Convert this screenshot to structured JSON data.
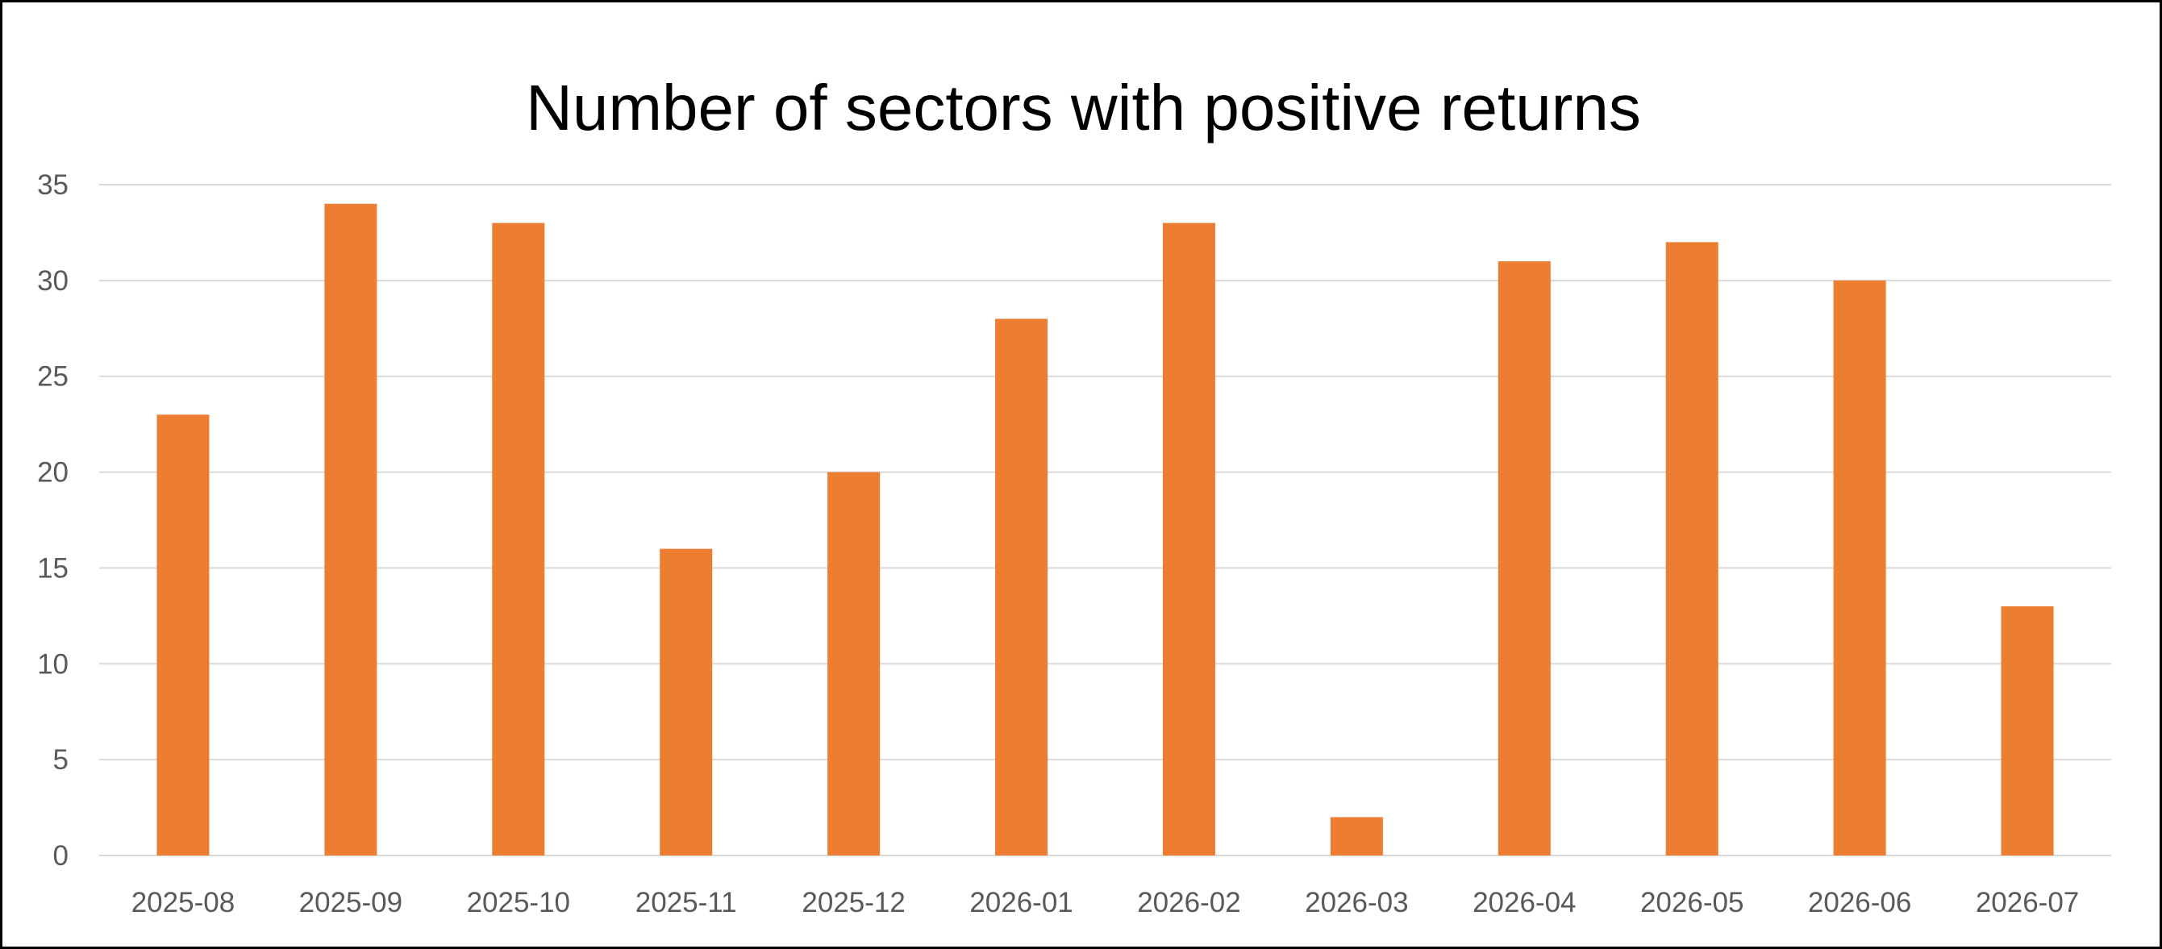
{
  "chart_data": {
    "type": "bar",
    "title": "Number of sectors with positive returns",
    "xlabel": "",
    "ylabel": "",
    "categories": [
      "2025-08",
      "2025-09",
      "2025-10",
      "2025-11",
      "2025-12",
      "2026-01",
      "2026-02",
      "2026-03",
      "2026-04",
      "2026-05",
      "2026-06",
      "2026-07"
    ],
    "values": [
      23,
      34,
      33,
      16,
      20,
      28,
      33,
      2,
      31,
      32,
      30,
      13
    ],
    "ylim": [
      0,
      35
    ],
    "yticks": [
      0,
      5,
      10,
      15,
      20,
      25,
      30,
      35
    ],
    "grid": true,
    "legend": "none",
    "bar_color": "#ED7D31",
    "grid_color": "#D9D9D9"
  }
}
